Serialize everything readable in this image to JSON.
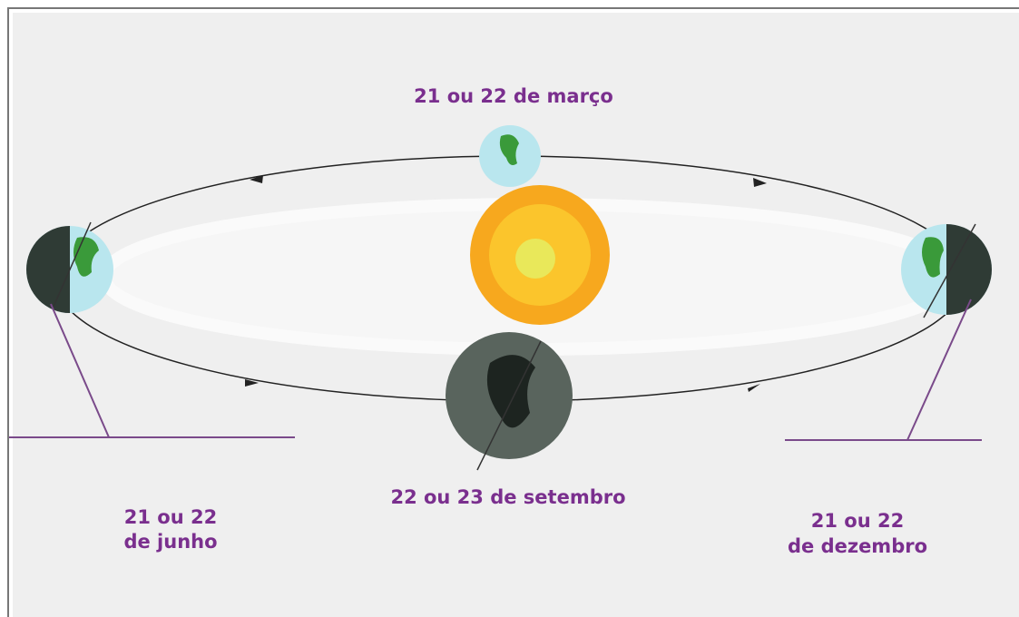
{
  "labels": {
    "march": "21 ou 22 de março",
    "september": "22 ou 23 de setembro",
    "june": [
      "21 ou 22",
      "de junho"
    ],
    "december": [
      "21 ou 22",
      "de dezembro"
    ]
  }
}
